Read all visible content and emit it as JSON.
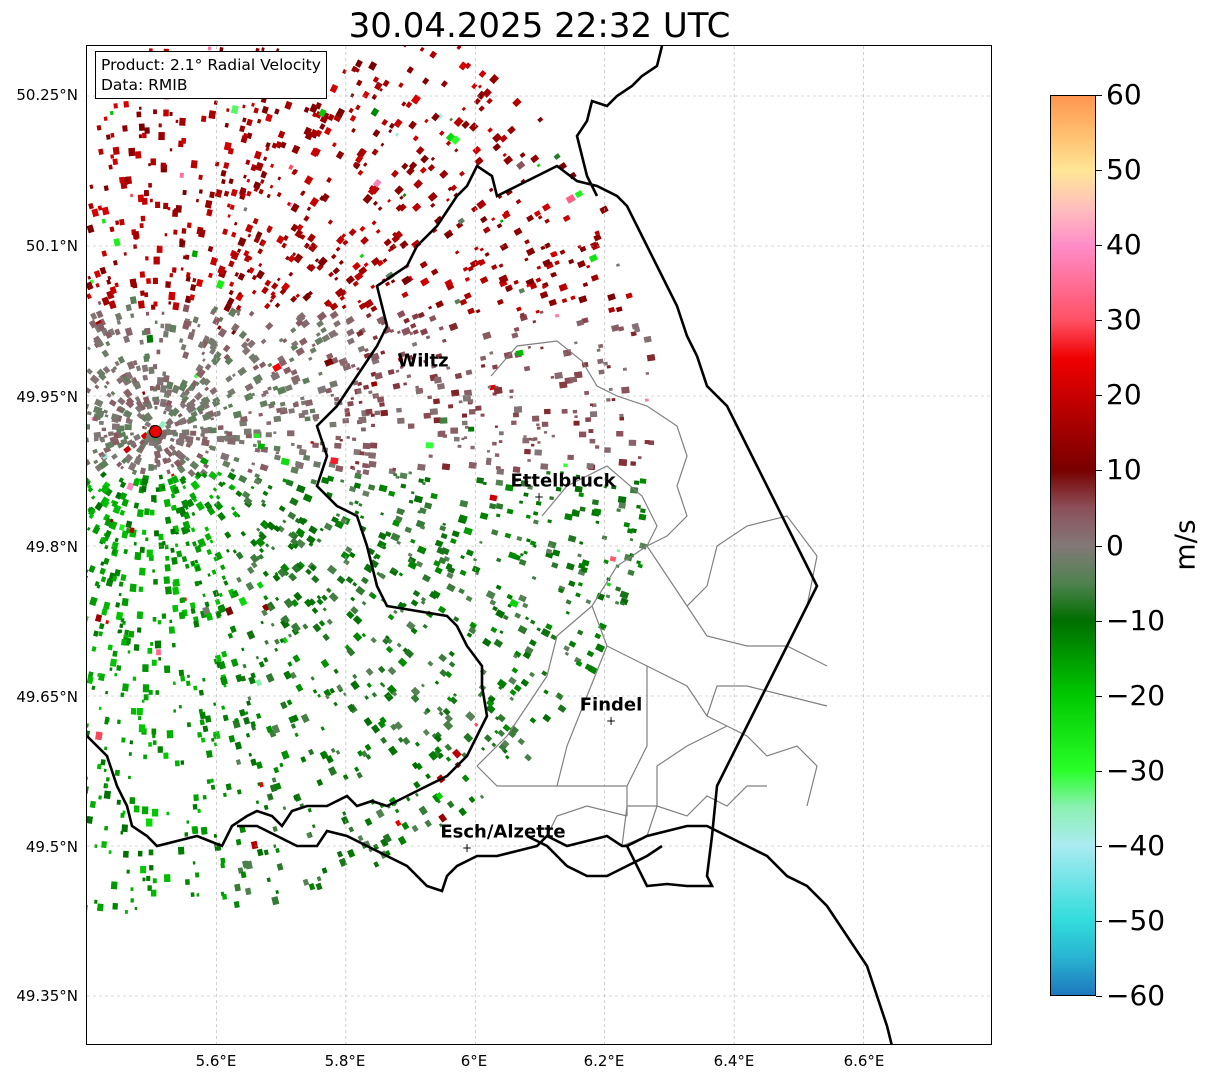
{
  "title": "30.04.2025 22:32 UTC",
  "info": {
    "product": "Product: 2.1° Radial Velocity",
    "data": "Data: RMIB"
  },
  "axes": {
    "lat_ticks": [
      "50.25°N",
      "50.1°N",
      "49.95°N",
      "49.8°N",
      "49.65°N",
      "49.5°N",
      "49.35°N"
    ],
    "lon_ticks": [
      "5.6°E",
      "5.8°E",
      "6°E",
      "6.2°E",
      "6.4°E",
      "6.6°E"
    ],
    "lon_range": [
      5.4,
      6.8
    ],
    "lat_range": [
      49.3,
      50.3
    ],
    "grid": true
  },
  "colorbar": {
    "label": "m/s",
    "ticks": [
      "60",
      "50",
      "40",
      "30",
      "20",
      "10",
      "0",
      "−10",
      "−20",
      "−30",
      "−40",
      "−50",
      "−60"
    ],
    "range": [
      -60,
      60
    ]
  },
  "cities": [
    {
      "name": "Wiltz",
      "lon": 5.93,
      "lat": 49.97
    },
    {
      "name": "Ettelbruck",
      "lon": 6.1,
      "lat": 49.85
    },
    {
      "name": "Findel",
      "lon": 6.21,
      "lat": 49.63
    },
    {
      "name": "Esch/Alzette",
      "lon": 5.99,
      "lat": 49.5
    }
  ],
  "radar_site": {
    "lon": 5.505,
    "lat": 49.915
  },
  "colors": {
    "border": "#000000",
    "cantons": "#808080",
    "grid": "#b0b0b0"
  }
}
